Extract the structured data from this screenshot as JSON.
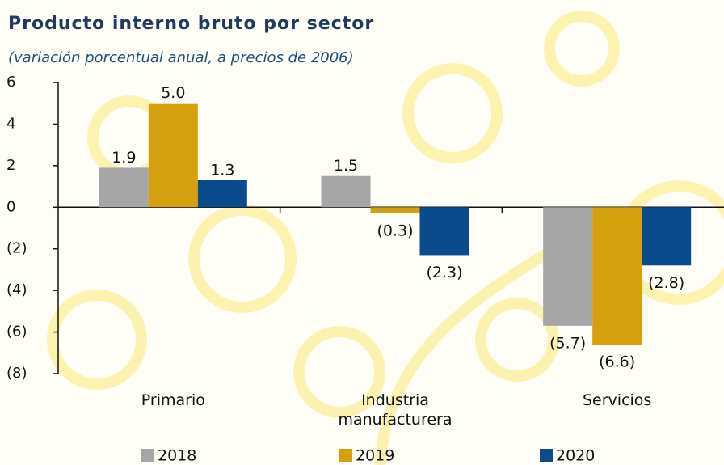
{
  "chart_data": {
    "type": "bar",
    "title": "Producto interno bruto por sector",
    "subtitle": "(variación porcentual anual, a precios de 2006)",
    "categories": [
      "Primario",
      "Industria manufacturera",
      "Servicios"
    ],
    "series": [
      {
        "name": "2018",
        "color": "#a6a6a6",
        "values": [
          1.9,
          1.5,
          -5.7
        ],
        "value_labels": [
          "1.9",
          "1.5",
          "(5.7)"
        ]
      },
      {
        "name": "2019",
        "color": "#d4a00e",
        "values": [
          5.0,
          -0.3,
          -6.6
        ],
        "value_labels": [
          "5.0",
          "(0.3)",
          "(6.6)"
        ]
      },
      {
        "name": "2020",
        "color": "#0b4a8b",
        "values": [
          1.3,
          -2.3,
          -2.8
        ],
        "value_labels": [
          "1.3",
          "(2.3)",
          "(2.8)"
        ]
      }
    ],
    "ylim": [
      -8,
      6
    ],
    "yticks": [
      6,
      4,
      2,
      0,
      {
        "value": -2,
        "label": "(2)"
      },
      {
        "value": -4,
        "label": "(4)"
      },
      {
        "value": -6,
        "label": "(6)"
      },
      {
        "value": -8,
        "label": "(8)"
      }
    ]
  }
}
